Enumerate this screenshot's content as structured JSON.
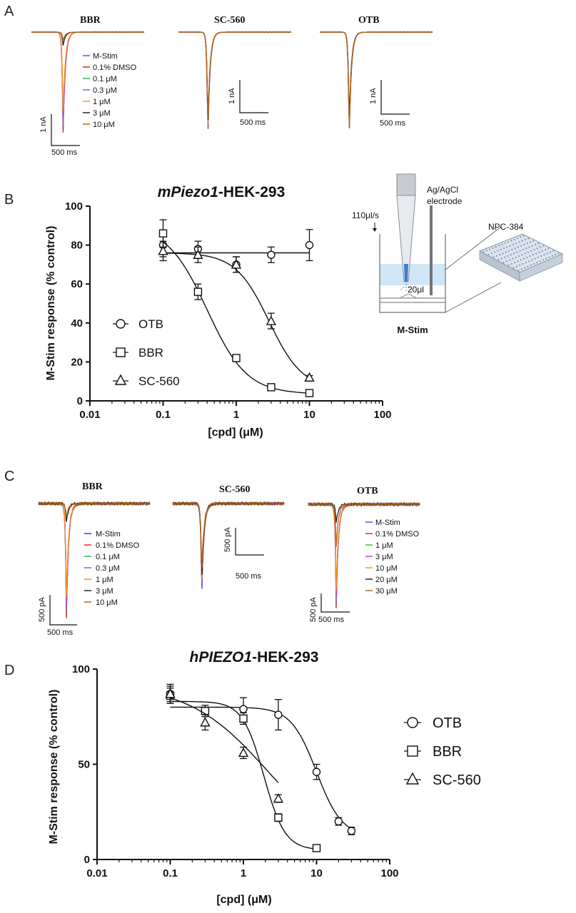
{
  "panels": {
    "A": "A",
    "B": "B",
    "C": "C",
    "D": "D"
  },
  "trace_panels": {
    "A": {
      "groups": [
        {
          "title": "BBR",
          "legend": [
            "M-Stim",
            "0.1% DMSO",
            "0.1 μM",
            "0.3 μM",
            "1 μM",
            "3 μM",
            "10 μM"
          ],
          "scale_y": "1 nA",
          "scale_x": "500 ms"
        },
        {
          "title": "SC-560",
          "legend": [],
          "scale_y": "1 nA",
          "scale_x": "500 ms"
        },
        {
          "title": "OTB",
          "legend": [],
          "scale_y": "1 nA",
          "scale_x": "500 ms"
        }
      ],
      "legend_colors": [
        "#5555ee",
        "#e8232a",
        "#39b54a",
        "#b04cd6",
        "#f7941d",
        "#222222",
        "#b5651d"
      ]
    },
    "C": {
      "groups": [
        {
          "title": "BBR",
          "legend": [
            "M-Stim",
            "0.1% DMSO",
            "0.1 μM",
            "0.3 μM",
            "1 μM",
            "3 μM",
            "10 μM"
          ],
          "scale_y": "500 pA",
          "scale_x": "500 ms"
        },
        {
          "title": "SC-560",
          "legend": [],
          "scale_y": "500 pA",
          "scale_x": "500 ms"
        },
        {
          "title": "OTB",
          "legend": [
            "M-Stim",
            "0.1% DMSO",
            "1 μM",
            "3 μM",
            "10 μM",
            "20 μM",
            "30 μM"
          ],
          "scale_y": "500 pA",
          "scale_x": "500 ms"
        }
      ],
      "legend_colors": [
        "#2b3bd6",
        "#e8232a",
        "#39b54a",
        "#b04cd6",
        "#f7941d",
        "#222222",
        "#b5651d"
      ]
    }
  },
  "inset": {
    "rate": "110μl/s",
    "electrode_line1": "Ag/AgCl",
    "electrode_line2": "electrode",
    "volume": "20μl",
    "plate": "NPC-384",
    "label": "M-Stim"
  },
  "chart_data": [
    {
      "type": "scatter",
      "title": "mPiezo1-HEK-293",
      "title_italic": "mPiezo1",
      "title_rest": "-HEK-293",
      "xlabel": "[cpd] (μM)",
      "ylabel": "M-Stim response (% control)",
      "x_scale": "log",
      "xlim": [
        0.01,
        100
      ],
      "ylim": [
        0,
        100
      ],
      "x_ticks": [
        "0.01",
        "0.1",
        "1",
        "10",
        "100"
      ],
      "y_ticks": [
        "0",
        "20",
        "40",
        "60",
        "80",
        "100"
      ],
      "legend_position": "left",
      "series": [
        {
          "name": "OTB",
          "marker": "circle",
          "x": [
            0.1,
            0.3,
            1,
            3,
            10
          ],
          "y": [
            80,
            78,
            70,
            75,
            80
          ],
          "err": [
            6,
            4,
            4,
            4,
            8
          ],
          "fit": "flat",
          "fit_level": 76
        },
        {
          "name": "BBR",
          "marker": "square",
          "x": [
            0.1,
            0.3,
            1,
            3,
            10
          ],
          "y": [
            86,
            56,
            22,
            7,
            4
          ],
          "err": [
            7,
            4,
            1,
            1,
            1
          ],
          "fit": "hill",
          "top": 90,
          "bottom": 3.5,
          "ic50": 0.4,
          "hill": 1.6
        },
        {
          "name": "SC-560",
          "marker": "triangle",
          "x": [
            0.1,
            0.3,
            1,
            3,
            10
          ],
          "y": [
            77,
            75,
            70,
            41,
            12
          ],
          "err": [
            5,
            4,
            4,
            4,
            1
          ],
          "fit": "hill",
          "top": 76,
          "bottom": 6,
          "ic50": 2.8,
          "hill": 1.9
        }
      ]
    },
    {
      "type": "scatter",
      "title": "hPIEZO1-HEK-293",
      "title_italic": "hPIEZO1",
      "title_rest": "-HEK-293",
      "xlabel": "[cpd] (μM)",
      "ylabel": "M-Stim response (% control)",
      "x_scale": "log",
      "xlim": [
        0.01,
        100
      ],
      "ylim": [
        0,
        100
      ],
      "x_ticks": [
        "0.01",
        "0.1",
        "1",
        "10",
        "100"
      ],
      "y_ticks": [
        "0",
        "50",
        "100"
      ],
      "legend_position": "right",
      "series": [
        {
          "name": "OTB",
          "marker": "circle",
          "x": [
            0.1,
            1,
            3,
            10,
            20,
            30
          ],
          "y": [
            87,
            79,
            76,
            46,
            20,
            15
          ],
          "err": [
            4,
            6,
            8,
            4,
            2,
            2
          ],
          "fit": "hill",
          "top": 80,
          "bottom": 12,
          "ic50": 10,
          "hill": 2.5
        },
        {
          "name": "BBR",
          "marker": "square",
          "x": [
            0.1,
            0.3,
            1,
            3,
            10
          ],
          "y": [
            86,
            78,
            74,
            22,
            6
          ],
          "err": [
            4,
            3,
            3,
            2,
            1
          ],
          "fit": "hill",
          "top": 83,
          "bottom": 5,
          "ic50": 1.9,
          "hill": 3.0
        },
        {
          "name": "SC-560",
          "marker": "triangle",
          "x": [
            0.1,
            0.3,
            1,
            3
          ],
          "y": [
            87,
            72,
            56,
            32
          ],
          "err": [
            5,
            4,
            3,
            2
          ],
          "fit": "hill",
          "top": 92,
          "bottom": 0,
          "ic50": 2.2,
          "hill": 0.8
        }
      ]
    }
  ]
}
